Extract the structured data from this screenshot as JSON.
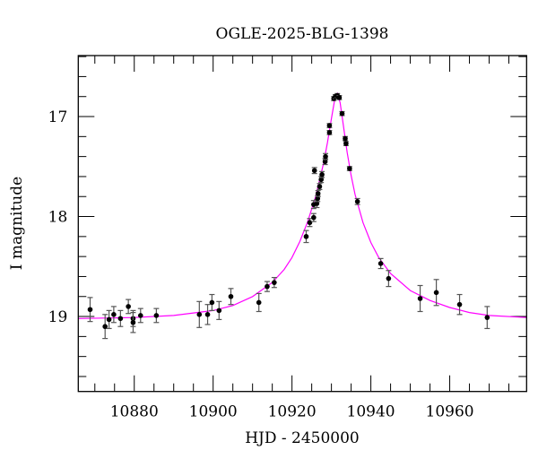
{
  "chart_data": {
    "type": "scatter",
    "title": "OGLE-2025-BLG-1398",
    "xlabel": "HJD - 2450000",
    "ylabel": "I magnitude",
    "xlim": [
      10865.8,
      10979.5
    ],
    "ylim": [
      19.75,
      16.39
    ],
    "y_inverted": true,
    "grid": false,
    "x_ticks": [
      10880,
      10900,
      10920,
      10940,
      10960
    ],
    "x_tick_labels": [
      "10880",
      "10900",
      "10920",
      "10940",
      "10960"
    ],
    "x_minor_step": 5,
    "y_ticks": [
      17,
      18,
      19
    ],
    "y_tick_labels": [
      "17",
      "18",
      "19"
    ],
    "y_minor_step": 0.2,
    "colors": {
      "points": "#000000",
      "errorbars": "#555555",
      "model": "#ff00ff"
    },
    "series": [
      {
        "kind": "points_with_errors",
        "points": [
          [
            10868.8,
            18.93,
            0.12
          ],
          [
            10872.6,
            19.1,
            0.12
          ],
          [
            10873.6,
            19.03,
            0.09
          ],
          [
            10874.8,
            18.98,
            0.08
          ],
          [
            10876.5,
            19.02,
            0.08
          ],
          [
            10878.5,
            18.9,
            0.07
          ],
          [
            10879.7,
            19.02,
            0.08
          ],
          [
            10879.7,
            19.06,
            0.1
          ],
          [
            10881.6,
            18.99,
            0.07
          ],
          [
            10885.6,
            18.99,
            0.07
          ],
          [
            10896.5,
            18.98,
            0.13
          ],
          [
            10898.6,
            18.98,
            0.1
          ],
          [
            10899.7,
            18.86,
            0.08
          ],
          [
            10901.5,
            18.94,
            0.09
          ],
          [
            10904.5,
            18.8,
            0.08
          ],
          [
            10911.6,
            18.86,
            0.09
          ],
          [
            10913.7,
            18.7,
            0.05
          ],
          [
            10915.5,
            18.66,
            0.05
          ],
          [
            10923.6,
            18.2,
            0.06
          ],
          [
            10924.5,
            18.06,
            0.04
          ],
          [
            10925.5,
            18.01,
            0.04
          ],
          [
            10925.7,
            17.54,
            0.03
          ],
          [
            10925.5,
            17.88,
            0.04
          ],
          [
            10926.3,
            17.87,
            0.04
          ],
          [
            10926.5,
            17.82,
            0.03
          ],
          [
            10926.6,
            17.77,
            0.03
          ],
          [
            10927.0,
            17.7,
            0.03
          ],
          [
            10927.4,
            17.63,
            0.03
          ],
          [
            10927.6,
            17.58,
            0.03
          ],
          [
            10928.4,
            17.45,
            0.03
          ],
          [
            10928.5,
            17.4,
            0.03
          ],
          [
            10929.5,
            17.09,
            0.02
          ],
          [
            10929.5,
            17.16,
            0.02
          ],
          [
            10930.6,
            16.82,
            0.02
          ],
          [
            10931.0,
            16.8,
            0.02
          ],
          [
            10931.5,
            16.79,
            0.02
          ],
          [
            10932.0,
            16.81,
            0.02
          ],
          [
            10932.7,
            16.97,
            0.02
          ],
          [
            10933.5,
            17.22,
            0.02
          ],
          [
            10933.7,
            17.27,
            0.02
          ],
          [
            10934.6,
            17.52,
            0.02
          ],
          [
            10936.6,
            17.85,
            0.03
          ],
          [
            10942.5,
            18.47,
            0.05
          ],
          [
            10944.5,
            18.62,
            0.08
          ],
          [
            10952.5,
            18.82,
            0.13
          ],
          [
            10956.6,
            18.76,
            0.13
          ],
          [
            10962.5,
            18.88,
            0.1
          ],
          [
            10969.5,
            19.01,
            0.11
          ]
        ]
      },
      {
        "kind": "model_line",
        "points": [
          [
            10865.8,
            19.02
          ],
          [
            10880,
            19.01
          ],
          [
            10890,
            18.99
          ],
          [
            10900,
            18.94
          ],
          [
            10905,
            18.89
          ],
          [
            10910,
            18.8
          ],
          [
            10915,
            18.66
          ],
          [
            10918,
            18.53
          ],
          [
            10920,
            18.41
          ],
          [
            10922,
            18.25
          ],
          [
            10924,
            18.05
          ],
          [
            10926,
            17.8
          ],
          [
            10928,
            17.47
          ],
          [
            10929,
            17.26
          ],
          [
            10930,
            17.02
          ],
          [
            10930.8,
            16.84
          ],
          [
            10931.5,
            16.77
          ],
          [
            10932.2,
            16.86
          ],
          [
            10933,
            17.08
          ],
          [
            10934,
            17.36
          ],
          [
            10935,
            17.59
          ],
          [
            10936,
            17.78
          ],
          [
            10938,
            18.06
          ],
          [
            10940,
            18.26
          ],
          [
            10942,
            18.41
          ],
          [
            10945,
            18.57
          ],
          [
            10950,
            18.74
          ],
          [
            10955,
            18.84
          ],
          [
            10960,
            18.91
          ],
          [
            10965,
            18.96
          ],
          [
            10970,
            18.99
          ],
          [
            10979.5,
            19.01
          ]
        ]
      }
    ]
  }
}
